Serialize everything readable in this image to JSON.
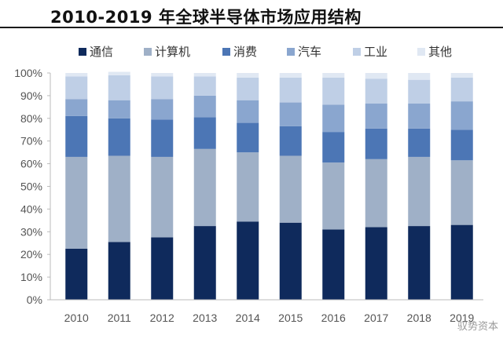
{
  "title": "2010-2019 年全球半导体市场应用结构",
  "watermark": "驭势资本",
  "chart_data": {
    "type": "bar",
    "stacked": true,
    "categories": [
      "2010",
      "2011",
      "2012",
      "2013",
      "2014",
      "2015",
      "2016",
      "2017",
      "2018",
      "2019"
    ],
    "ylim": [
      0,
      100
    ],
    "yticks": [
      "0%",
      "10%",
      "20%",
      "30%",
      "40%",
      "50%",
      "60%",
      "70%",
      "80%",
      "90%",
      "100%"
    ],
    "grid": false,
    "legend_position": "top",
    "series": [
      {
        "name": "通信",
        "color": "#0f2a5c",
        "values": [
          22.5,
          25.5,
          27.5,
          32.5,
          34.5,
          34,
          31,
          32,
          32.5,
          33
        ]
      },
      {
        "name": "计算机",
        "color": "#9fb0c7",
        "values": [
          40.5,
          38,
          35.5,
          34,
          30.5,
          29.5,
          29.5,
          30,
          30.5,
          28.5
        ]
      },
      {
        "name": "消费",
        "color": "#4c76b5",
        "values": [
          18,
          16.5,
          16.5,
          14,
          13,
          13,
          13.5,
          13.5,
          12.5,
          13.5
        ]
      },
      {
        "name": "汽车",
        "color": "#8aa6cf",
        "values": [
          7.5,
          8,
          9,
          9.5,
          10,
          10.5,
          12,
          11,
          11,
          12.5
        ]
      },
      {
        "name": "工业",
        "color": "#bfcfe6",
        "values": [
          10,
          11,
          10,
          8.5,
          10,
          11,
          12,
          11,
          10.5,
          10.5
        ]
      },
      {
        "name": "其他",
        "color": "#e0e8f3",
        "values": [
          1.5,
          1.5,
          1.5,
          1.5,
          2,
          2,
          2,
          2.5,
          3,
          2
        ]
      }
    ]
  }
}
